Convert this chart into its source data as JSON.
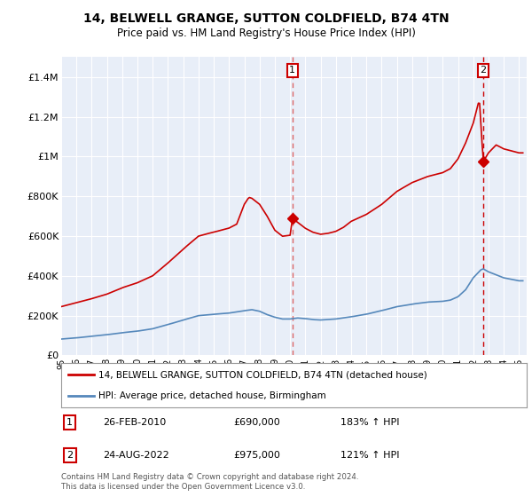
{
  "title": "14, BELWELL GRANGE, SUTTON COLDFIELD, B74 4TN",
  "subtitle": "Price paid vs. HM Land Registry's House Price Index (HPI)",
  "ylim": [
    0,
    1500000
  ],
  "yticks": [
    0,
    200000,
    400000,
    600000,
    800000,
    1000000,
    1200000,
    1400000
  ],
  "ytick_labels": [
    "£0",
    "£200K",
    "£400K",
    "£600K",
    "£800K",
    "£1M",
    "£1.2M",
    "£1.4M"
  ],
  "background_color": "#ffffff",
  "plot_bg_color": "#e8eef8",
  "grid_color": "#ffffff",
  "sale1_x": 2010.15,
  "sale1_y": 690000,
  "sale1_label": "1",
  "sale1_date": "26-FEB-2010",
  "sale1_price": "£690,000",
  "sale1_hpi": "183% ↑ HPI",
  "sale2_x": 2022.65,
  "sale2_y": 975000,
  "sale2_label": "2",
  "sale2_date": "24-AUG-2022",
  "sale2_price": "£975,000",
  "sale2_hpi": "121% ↑ HPI",
  "house_color": "#cc0000",
  "hpi_color": "#5588bb",
  "legend_house": "14, BELWELL GRANGE, SUTTON COLDFIELD, B74 4TN (detached house)",
  "legend_hpi": "HPI: Average price, detached house, Birmingham",
  "footer": "Contains HM Land Registry data © Crown copyright and database right 2024.\nThis data is licensed under the Open Government Licence v3.0.",
  "xmin": 1995.0,
  "xmax": 2025.5
}
